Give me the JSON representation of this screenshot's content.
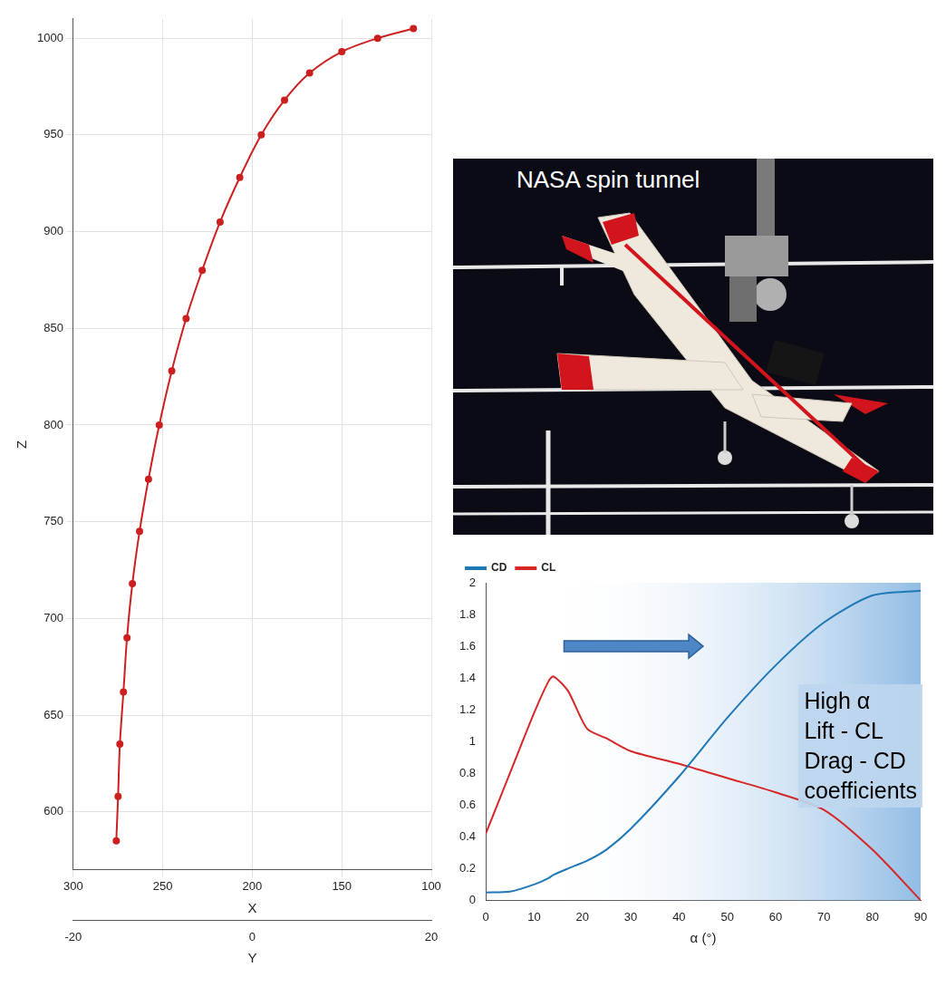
{
  "chart_data": [
    {
      "type": "line",
      "x": [
        110,
        130,
        150,
        168,
        182,
        195,
        207,
        218,
        228,
        237,
        245,
        252,
        258,
        263,
        267,
        270,
        272,
        274,
        275,
        276
      ],
      "values": [
        1005,
        1000,
        993,
        982,
        968,
        950,
        928,
        905,
        880,
        855,
        828,
        800,
        772,
        745,
        718,
        690,
        662,
        635,
        608,
        585
      ],
      "color": "#cc1f1f",
      "marker": "circle",
      "xlabel": "X",
      "ylabel": "Z",
      "x2label": "Y",
      "xlim": [
        300,
        100
      ],
      "xticks": [
        300,
        250,
        200,
        150,
        100
      ],
      "ylim": [
        570,
        1010
      ],
      "yticks": [
        600,
        650,
        700,
        750,
        800,
        850,
        900,
        950,
        1000
      ],
      "x2lim": [
        -20,
        20
      ],
      "x2ticks": [
        -20,
        0,
        20
      ],
      "grid": true
    },
    {
      "type": "line",
      "x": [
        0,
        5,
        10,
        13,
        14,
        17,
        21,
        25,
        30,
        40,
        50,
        60,
        70,
        80,
        90
      ],
      "series": [
        {
          "name": "CD",
          "color": "#1f77b4",
          "values": [
            0.05,
            0.055,
            0.1,
            0.14,
            0.16,
            0.2,
            0.25,
            0.32,
            0.45,
            0.78,
            1.15,
            1.48,
            1.75,
            1.92,
            1.95
          ]
        },
        {
          "name": "CL",
          "color": "#d62728",
          "values": [
            0.42,
            0.8,
            1.18,
            1.38,
            1.41,
            1.32,
            1.08,
            1.02,
            0.94,
            0.86,
            0.77,
            0.68,
            0.57,
            0.32,
            0
          ]
        }
      ],
      "xlabel": "α (°)",
      "xlim": [
        0,
        90
      ],
      "xticks": [
        0,
        10,
        20,
        30,
        40,
        50,
        60,
        70,
        80,
        90
      ],
      "ylim": [
        0,
        2
      ],
      "yticks": [
        0,
        0.2,
        0.4,
        0.6,
        0.8,
        1,
        1.2,
        1.4,
        1.6,
        1.8,
        2
      ],
      "legend": "top left",
      "grid": false,
      "annotations": [
        "High α",
        "Lift - CL",
        "Drag - CD",
        "coefficients"
      ]
    }
  ],
  "photo": {
    "label": "NASA spin tunnel"
  }
}
